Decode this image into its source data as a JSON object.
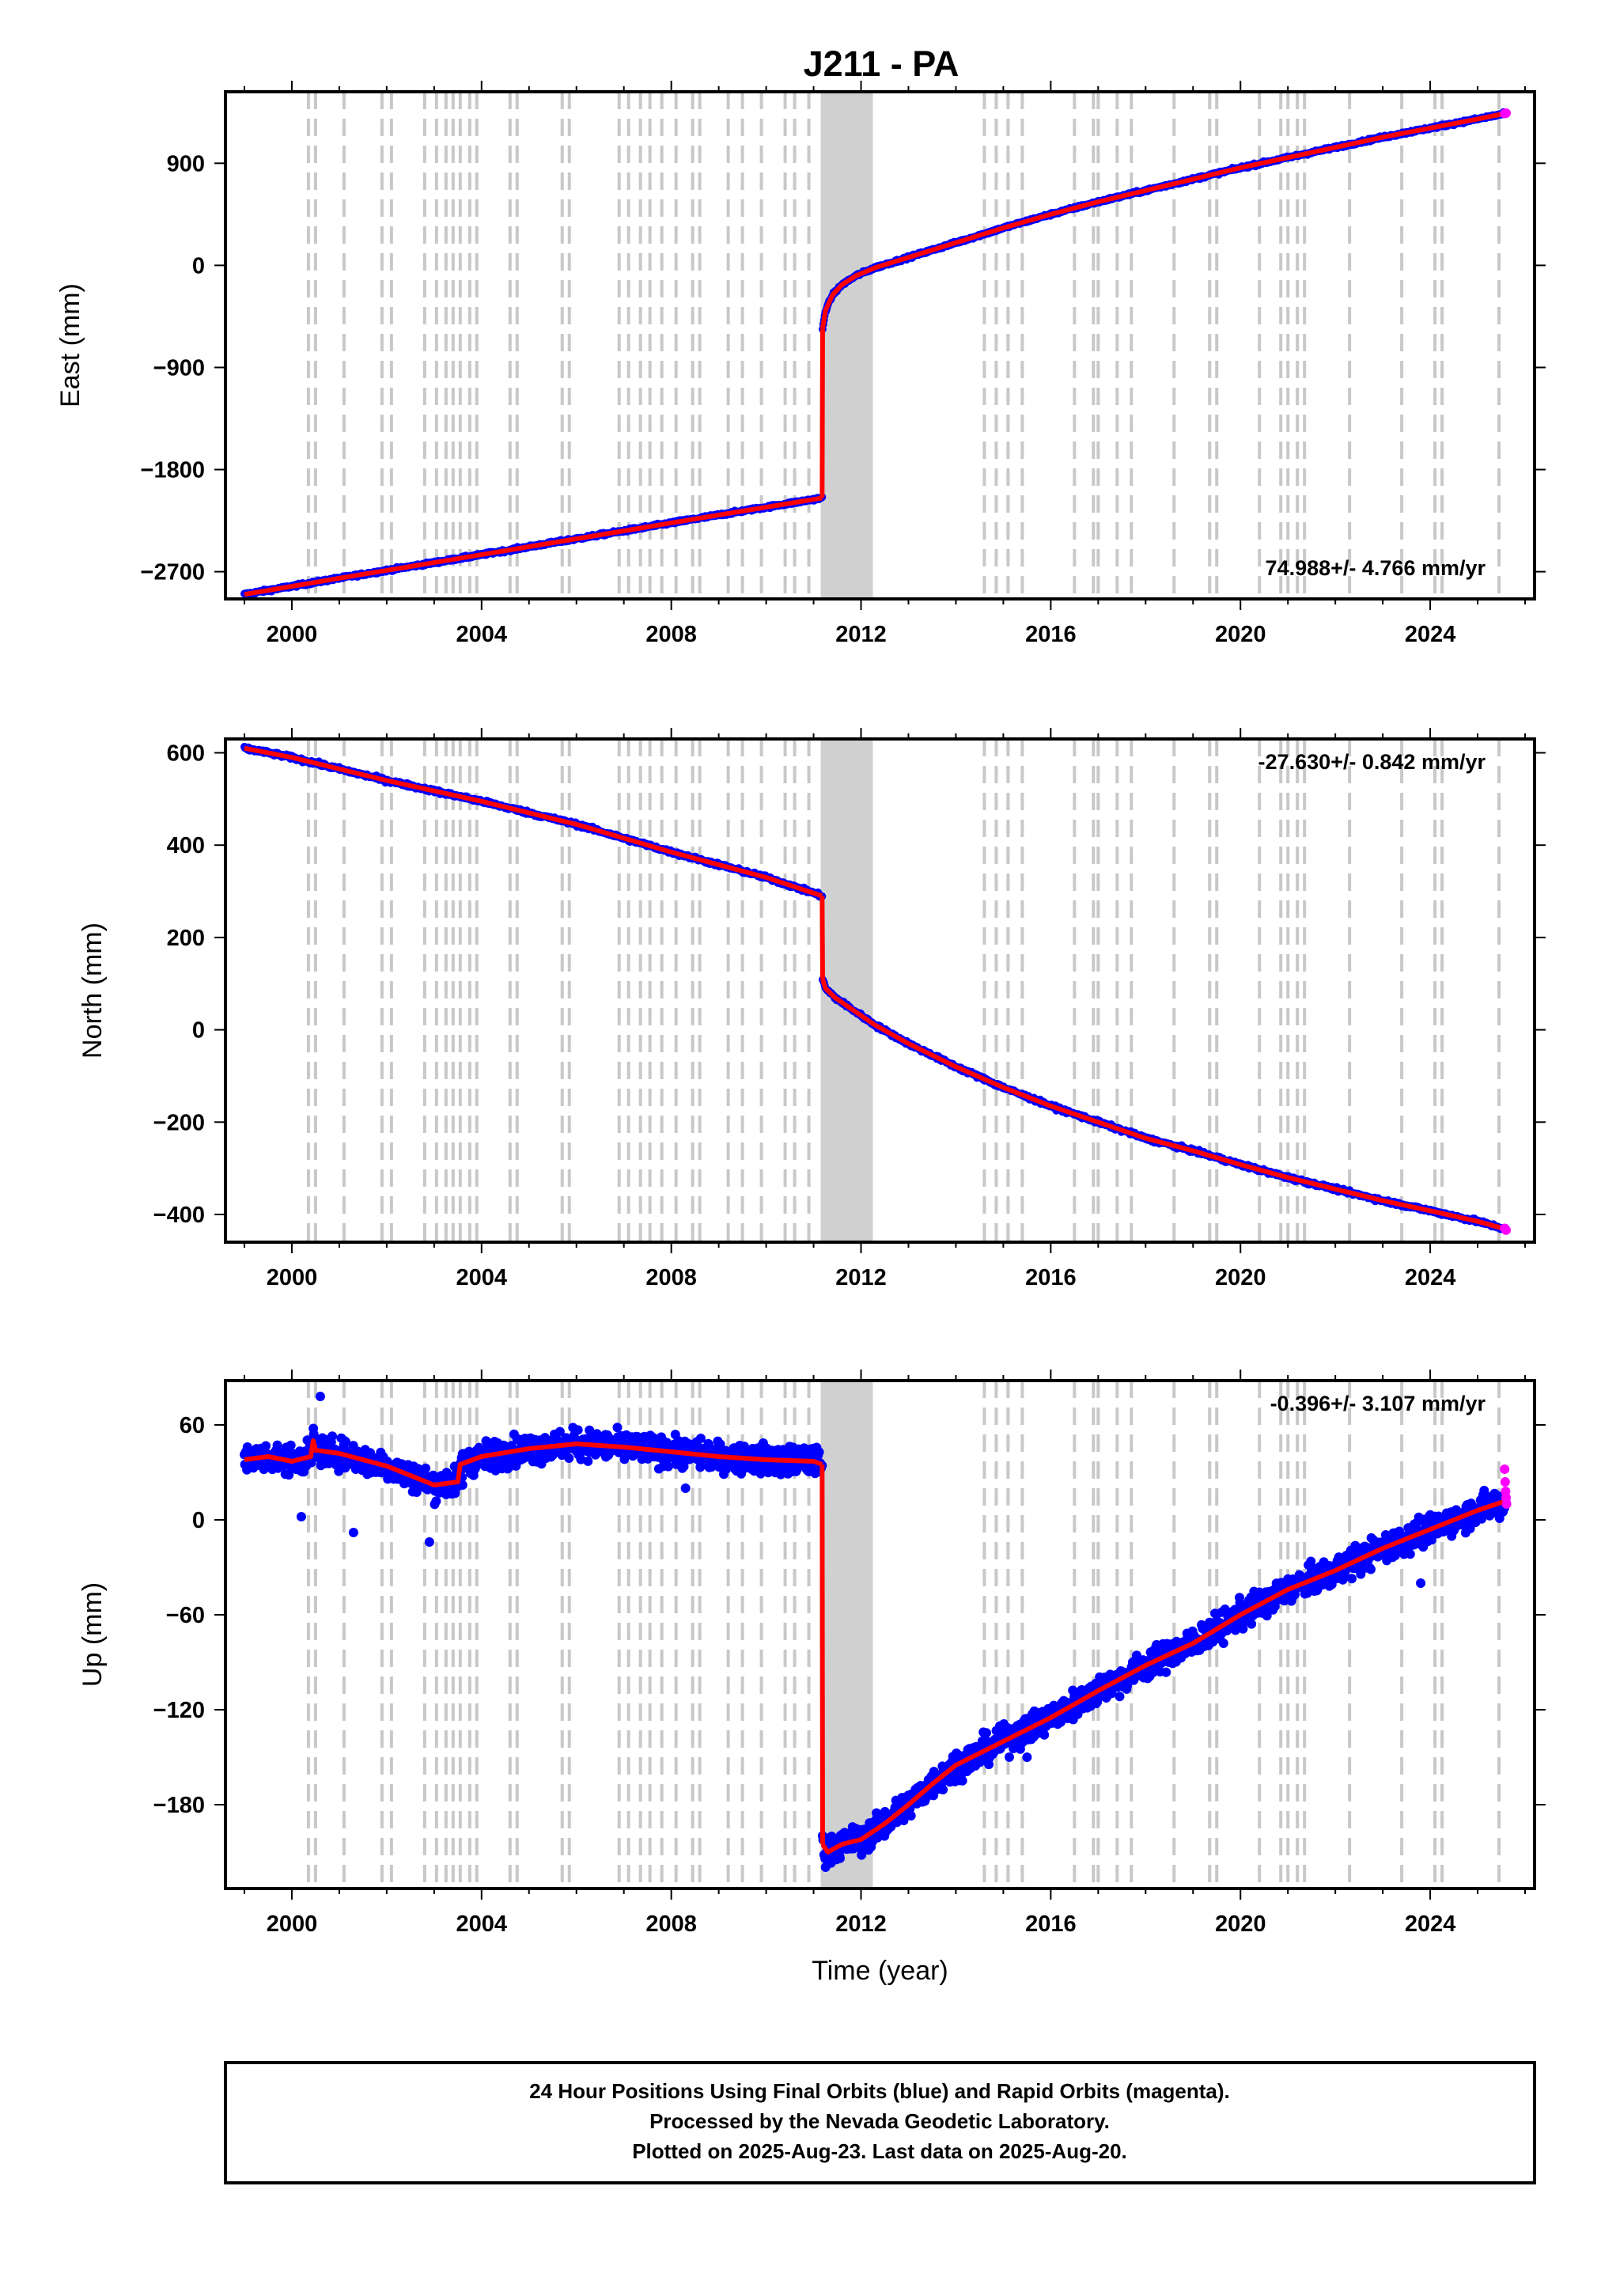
{
  "title": "J211 - PA",
  "colors": {
    "final_orbits": "#0000ff",
    "rapid_orbits": "#ff00ff",
    "model": "#ff0000",
    "event_lines": "#c8c8c8",
    "frame": "#000000"
  },
  "footer": {
    "line1": "24 Hour Positions Using Final Orbits (blue) and Rapid Orbits (magenta).",
    "line2": "Processed by the Nevada Geodetic Laboratory.",
    "line3": "Plotted on 2025-Aug-23. Last data on 2025-Aug-20."
  },
  "chart_data": [
    {
      "type": "scatter",
      "component": "east",
      "ylabel": "East (mm)",
      "xlabel": "",
      "xlim": [
        1998.6,
        2026.2
      ],
      "ylim": [
        -2940,
        1530
      ],
      "xticks": [
        2000,
        2004,
        2008,
        2012,
        2016,
        2020,
        2024
      ],
      "yticks": [
        -2700,
        -1800,
        -900,
        0,
        900
      ],
      "rate_label": "74.988+/- 4.766 mm/yr",
      "rate_position": "bottom-right",
      "series": [
        {
          "role": "model",
          "x": [
            1999.0,
            2001.0,
            2003.0,
            2005.0,
            2007.0,
            2009.0,
            2011.18
          ],
          "y": [
            -2900,
            -2757,
            -2620,
            -2480,
            -2340,
            -2200,
            -2050
          ]
        },
        {
          "role": "model",
          "x": [
            2011.19,
            2011.25,
            2011.4,
            2011.6,
            2011.9,
            2012.3,
            2013.0,
            2014.0,
            2015.0,
            2016.0,
            2017.0,
            2018.0,
            2019.0,
            2020.0,
            2021.0,
            2022.0,
            2023.0,
            2024.0,
            2025.0,
            2025.6
          ],
          "y": [
            -560,
            -400,
            -260,
            -170,
            -90,
            -20,
            70,
            200,
            330,
            450,
            560,
            660,
            760,
            860,
            950,
            1040,
            1130,
            1210,
            1290,
            1340
          ]
        }
      ],
      "rapid_points": {
        "x": [
          2025.57,
          2025.6
        ],
        "y": [
          1338,
          1342
        ]
      }
    },
    {
      "type": "scatter",
      "component": "north",
      "ylabel": "North (mm)",
      "xlabel": "",
      "xlim": [
        1998.6,
        2026.2
      ],
      "ylim": [
        -460,
        630
      ],
      "xticks": [
        2000,
        2004,
        2008,
        2012,
        2016,
        2020,
        2024
      ],
      "yticks": [
        -400,
        -200,
        0,
        200,
        400,
        600
      ],
      "rate_label": "-27.630+/- 0.842 mm/yr",
      "rate_position": "top-right",
      "series": [
        {
          "role": "model",
          "x": [
            1999.0,
            2000.0,
            2002.0,
            2004.0,
            2006.0,
            2008.0,
            2010.0,
            2011.18
          ],
          "y": [
            610,
            590,
            540,
            495,
            445,
            385,
            330,
            290
          ]
        },
        {
          "role": "model",
          "x": [
            2011.19,
            2011.25,
            2011.45,
            2011.8,
            2012.3,
            2013.0,
            2014.0,
            2015.0,
            2016.0,
            2017.0,
            2018.0,
            2019.0,
            2020.0,
            2021.0,
            2022.0,
            2023.0,
            2024.0,
            2025.0,
            2025.6
          ],
          "y": [
            110,
            90,
            70,
            45,
            10,
            -30,
            -80,
            -125,
            -165,
            -200,
            -235,
            -262,
            -292,
            -320,
            -345,
            -370,
            -392,
            -415,
            -432
          ]
        }
      ],
      "rapid_points": {
        "x": [
          2025.57,
          2025.6
        ],
        "y": [
          -430,
          -434
        ]
      }
    },
    {
      "type": "scatter",
      "component": "up",
      "ylabel": "Up (mm)",
      "xlabel": "Time (year)",
      "xlim": [
        1998.6,
        2026.2
      ],
      "ylim": [
        -233,
        88
      ],
      "xticks": [
        2000,
        2004,
        2008,
        2012,
        2016,
        2020,
        2024
      ],
      "yticks": [
        -180,
        -120,
        -60,
        0,
        60
      ],
      "rate_label": "-0.396+/- 3.107 mm/yr",
      "rate_position": "top-right",
      "series": [
        {
          "role": "model",
          "x": [
            1999.0,
            1999.5,
            2000.0,
            2000.4,
            2000.45,
            2000.5,
            2001.0,
            2001.5,
            2002.0,
            2002.5,
            2003.0,
            2003.5,
            2003.55,
            2004.0,
            2005.0,
            2006.0,
            2007.0,
            2008.0,
            2009.0,
            2010.0,
            2011.0,
            2011.18
          ],
          "y": [
            38,
            40,
            37,
            40,
            50,
            44,
            42,
            38,
            34,
            28,
            22,
            24,
            35,
            40,
            45,
            48,
            46,
            43,
            40,
            38,
            37,
            35
          ]
        },
        {
          "role": "model",
          "x": [
            2011.19,
            2011.3,
            2011.6,
            2012.0,
            2012.5,
            2013.0,
            2013.5,
            2014.0,
            2015.0,
            2016.0,
            2017.0,
            2018.0,
            2019.0,
            2020.0,
            2021.0,
            2022.0,
            2023.0,
            2024.0,
            2025.0,
            2025.6
          ],
          "y": [
            -205,
            -210,
            -205,
            -202,
            -192,
            -180,
            -167,
            -155,
            -140,
            -125,
            -108,
            -92,
            -78,
            -60,
            -44,
            -32,
            -18,
            -6,
            6,
            12
          ]
        }
      ],
      "rapid_points": {
        "x": [
          2025.57,
          2025.58,
          2025.59,
          2025.6,
          2025.61
        ],
        "y": [
          32,
          24,
          18,
          14,
          10
        ]
      }
    }
  ],
  "event_years": [
    2000.35,
    2000.5,
    2001.1,
    2001.9,
    2002.1,
    2002.8,
    2003.05,
    2003.25,
    2003.4,
    2003.55,
    2003.75,
    2003.9,
    2004.6,
    2004.75,
    2005.7,
    2005.85,
    2006.9,
    2007.1,
    2007.35,
    2007.55,
    2007.8,
    2008.1,
    2008.45,
    2008.6,
    2009.2,
    2009.5,
    2009.9,
    2010.4,
    2010.6,
    2010.9,
    2014.6,
    2014.85,
    2015.1,
    2015.4,
    2016.5,
    2016.9,
    2017.0,
    2017.4,
    2017.7,
    2018.6,
    2019.35,
    2019.5,
    2020.4,
    2020.85,
    2021.0,
    2021.2,
    2021.35,
    2022.3,
    2023.4,
    2024.1,
    2024.25,
    2025.45
  ],
  "dense_event_band": [
    2011.15,
    2012.25
  ]
}
